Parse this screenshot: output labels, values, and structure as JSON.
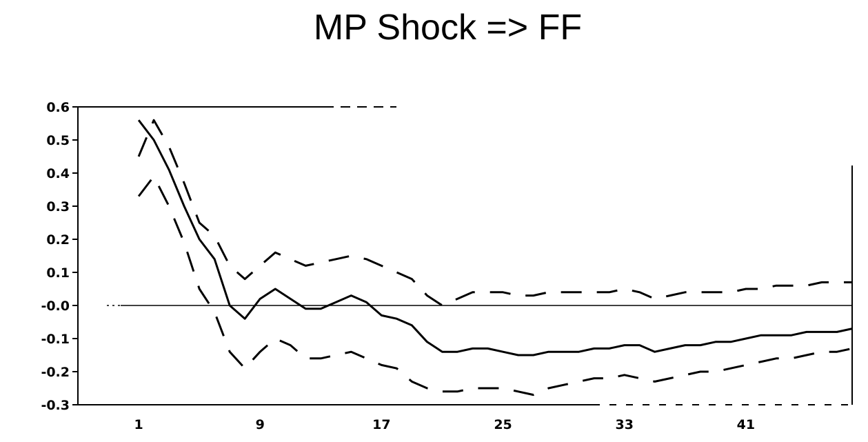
{
  "chart_data": {
    "type": "line",
    "title": "MP Shock => FF",
    "xlabel": "",
    "ylabel": "",
    "x_tick_labels": [
      "1",
      "9",
      "17",
      "25",
      "33",
      "41"
    ],
    "y_tick_labels": [
      "0.6",
      "0.5",
      "0.4",
      "0.3",
      "0.2",
      "0.1",
      "-0.0",
      "-0.1",
      "-0.2",
      "-0.3"
    ],
    "xlim": [
      -3,
      48
    ],
    "ylim": [
      -0.3,
      0.6
    ],
    "zero_line": true,
    "series": [
      {
        "role": "response",
        "style": "solid",
        "x": [
          1,
          2,
          3,
          4,
          5,
          6,
          7,
          8,
          9,
          10,
          11,
          12,
          13,
          14,
          15,
          16,
          17,
          18,
          19,
          20,
          21,
          22,
          23,
          24,
          25,
          26,
          27,
          28,
          29,
          30,
          31,
          32,
          33,
          34,
          35,
          36,
          37,
          38,
          39,
          40,
          41,
          42,
          43,
          44,
          45,
          46,
          47,
          48
        ],
        "values": [
          0.56,
          0.5,
          0.41,
          0.3,
          0.2,
          0.14,
          0.0,
          -0.04,
          0.02,
          0.05,
          0.02,
          -0.01,
          -0.01,
          0.01,
          0.03,
          0.01,
          -0.03,
          -0.04,
          -0.06,
          -0.11,
          -0.14,
          -0.14,
          -0.13,
          -0.13,
          -0.14,
          -0.15,
          -0.15,
          -0.14,
          -0.14,
          -0.14,
          -0.13,
          -0.13,
          -0.12,
          -0.12,
          -0.14,
          -0.13,
          -0.12,
          -0.12,
          -0.11,
          -0.11,
          -0.1,
          -0.09,
          -0.09,
          -0.09,
          -0.08,
          -0.08,
          -0.08,
          -0.07
        ]
      },
      {
        "role": "upper-band",
        "style": "dashed",
        "x": [
          1,
          2,
          3,
          4,
          5,
          6,
          7,
          8,
          9,
          10,
          11,
          12,
          13,
          14,
          15,
          16,
          17,
          18,
          19,
          20,
          21,
          22,
          23,
          24,
          25,
          26,
          27,
          28,
          29,
          30,
          31,
          32,
          33,
          34,
          35,
          36,
          37,
          38,
          39,
          40,
          41,
          42,
          43,
          44,
          45,
          46,
          47,
          48
        ],
        "values": [
          0.45,
          0.56,
          0.48,
          0.37,
          0.25,
          0.21,
          0.12,
          0.08,
          0.12,
          0.16,
          0.14,
          0.12,
          0.13,
          0.14,
          0.15,
          0.14,
          0.12,
          0.1,
          0.08,
          0.03,
          0.0,
          0.02,
          0.04,
          0.04,
          0.04,
          0.03,
          0.03,
          0.04,
          0.04,
          0.04,
          0.04,
          0.04,
          0.05,
          0.04,
          0.02,
          0.03,
          0.04,
          0.04,
          0.04,
          0.04,
          0.05,
          0.05,
          0.06,
          0.06,
          0.06,
          0.07,
          0.07,
          0.07
        ]
      },
      {
        "role": "lower-band",
        "style": "dashed",
        "x": [
          1,
          2,
          3,
          4,
          5,
          6,
          7,
          8,
          9,
          10,
          11,
          12,
          13,
          14,
          15,
          16,
          17,
          18,
          19,
          20,
          21,
          22,
          23,
          24,
          25,
          26,
          27,
          28,
          29,
          30,
          31,
          32,
          33,
          34,
          35,
          36,
          37,
          38,
          39,
          40,
          41,
          42,
          43,
          44,
          45,
          46,
          47,
          48
        ],
        "values": [
          0.33,
          0.39,
          0.3,
          0.19,
          0.05,
          -0.02,
          -0.14,
          -0.19,
          -0.14,
          -0.1,
          -0.12,
          -0.16,
          -0.16,
          -0.15,
          -0.14,
          -0.16,
          -0.18,
          -0.19,
          -0.23,
          -0.25,
          -0.26,
          -0.26,
          -0.25,
          -0.25,
          -0.25,
          -0.26,
          -0.27,
          -0.25,
          -0.24,
          -0.23,
          -0.22,
          -0.22,
          -0.21,
          -0.22,
          -0.23,
          -0.22,
          -0.21,
          -0.2,
          -0.2,
          -0.19,
          -0.18,
          -0.17,
          -0.16,
          -0.16,
          -0.15,
          -0.14,
          -0.14,
          -0.13
        ]
      }
    ],
    "grid": false,
    "legend": "none"
  }
}
